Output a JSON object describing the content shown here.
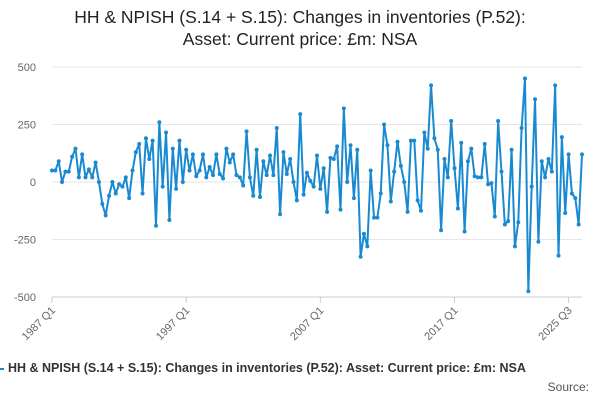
{
  "title_line1": "HH & NPISH (S.14 + S.15): Changes in inventories (P.52):",
  "title_line2": "Asset: Current price: £m: NSA",
  "legend_label": "HH & NPISH (S.14 + S.15): Changes in inventories (P.52): Asset: Current price: £m: NSA",
  "source_label": "Source:",
  "colors": {
    "series": "#1a8ad0",
    "grid": "#e6e6e6",
    "axis": "#cccccc"
  },
  "chart_data": {
    "type": "line",
    "title": "HH & NPISH (S.14 + S.15): Changes in inventories (P.52): Asset: Current price: £m: NSA",
    "xlabel": "",
    "ylabel": "",
    "ylim": [
      -500,
      500
    ],
    "y_ticks": [
      500,
      250,
      0,
      -250,
      -500
    ],
    "x_ticks": [
      {
        "label": "1987 Q1",
        "index": 0
      },
      {
        "label": "1997 Q1",
        "index": 40
      },
      {
        "label": "2007 Q1",
        "index": 80
      },
      {
        "label": "2017 Q1",
        "index": 120
      },
      {
        "label": "2025 Q3",
        "index": 154
      }
    ],
    "grid": true,
    "legend_position": "bottom",
    "series": [
      {
        "name": "HH & NPISH (S.14 + S.15): Changes in inventories (P.52): Asset: Current price: £m: NSA",
        "start": "1987 Q1",
        "frequency": "quarterly",
        "values": [
          50,
          50,
          90,
          0,
          45,
          45,
          110,
          145,
          20,
          120,
          20,
          55,
          20,
          85,
          0,
          -95,
          -145,
          -60,
          0,
          -50,
          -10,
          -20,
          20,
          -70,
          50,
          130,
          165,
          -50,
          190,
          100,
          180,
          -190,
          260,
          -20,
          215,
          -165,
          145,
          -30,
          180,
          0,
          140,
          50,
          120,
          25,
          50,
          120,
          20,
          65,
          30,
          120,
          35,
          15,
          145,
          85,
          120,
          30,
          20,
          -15,
          220,
          20,
          -60,
          140,
          -65,
          90,
          30,
          115,
          30,
          235,
          -140,
          130,
          35,
          100,
          0,
          -80,
          295,
          -55,
          40,
          5,
          -20,
          115,
          -30,
          60,
          -130,
          105,
          100,
          155,
          -120,
          320,
          0,
          160,
          -70,
          140,
          -325,
          -225,
          -280,
          50,
          -155,
          -155,
          -50,
          250,
          160,
          -85,
          45,
          175,
          70,
          0,
          -130,
          180,
          180,
          -80,
          -125,
          215,
          145,
          420,
          190,
          140,
          -210,
          100,
          20,
          265,
          60,
          -115,
          170,
          -215,
          90,
          145,
          25,
          20,
          20,
          165,
          -10,
          -5,
          -150,
          265,
          45,
          -185,
          -170,
          140,
          -280,
          -175,
          235,
          450,
          -475,
          -20,
          360,
          -260,
          90,
          20,
          100,
          45,
          420,
          -320,
          195,
          -135,
          120,
          -50,
          -70,
          -185,
          120
        ]
      }
    ]
  }
}
